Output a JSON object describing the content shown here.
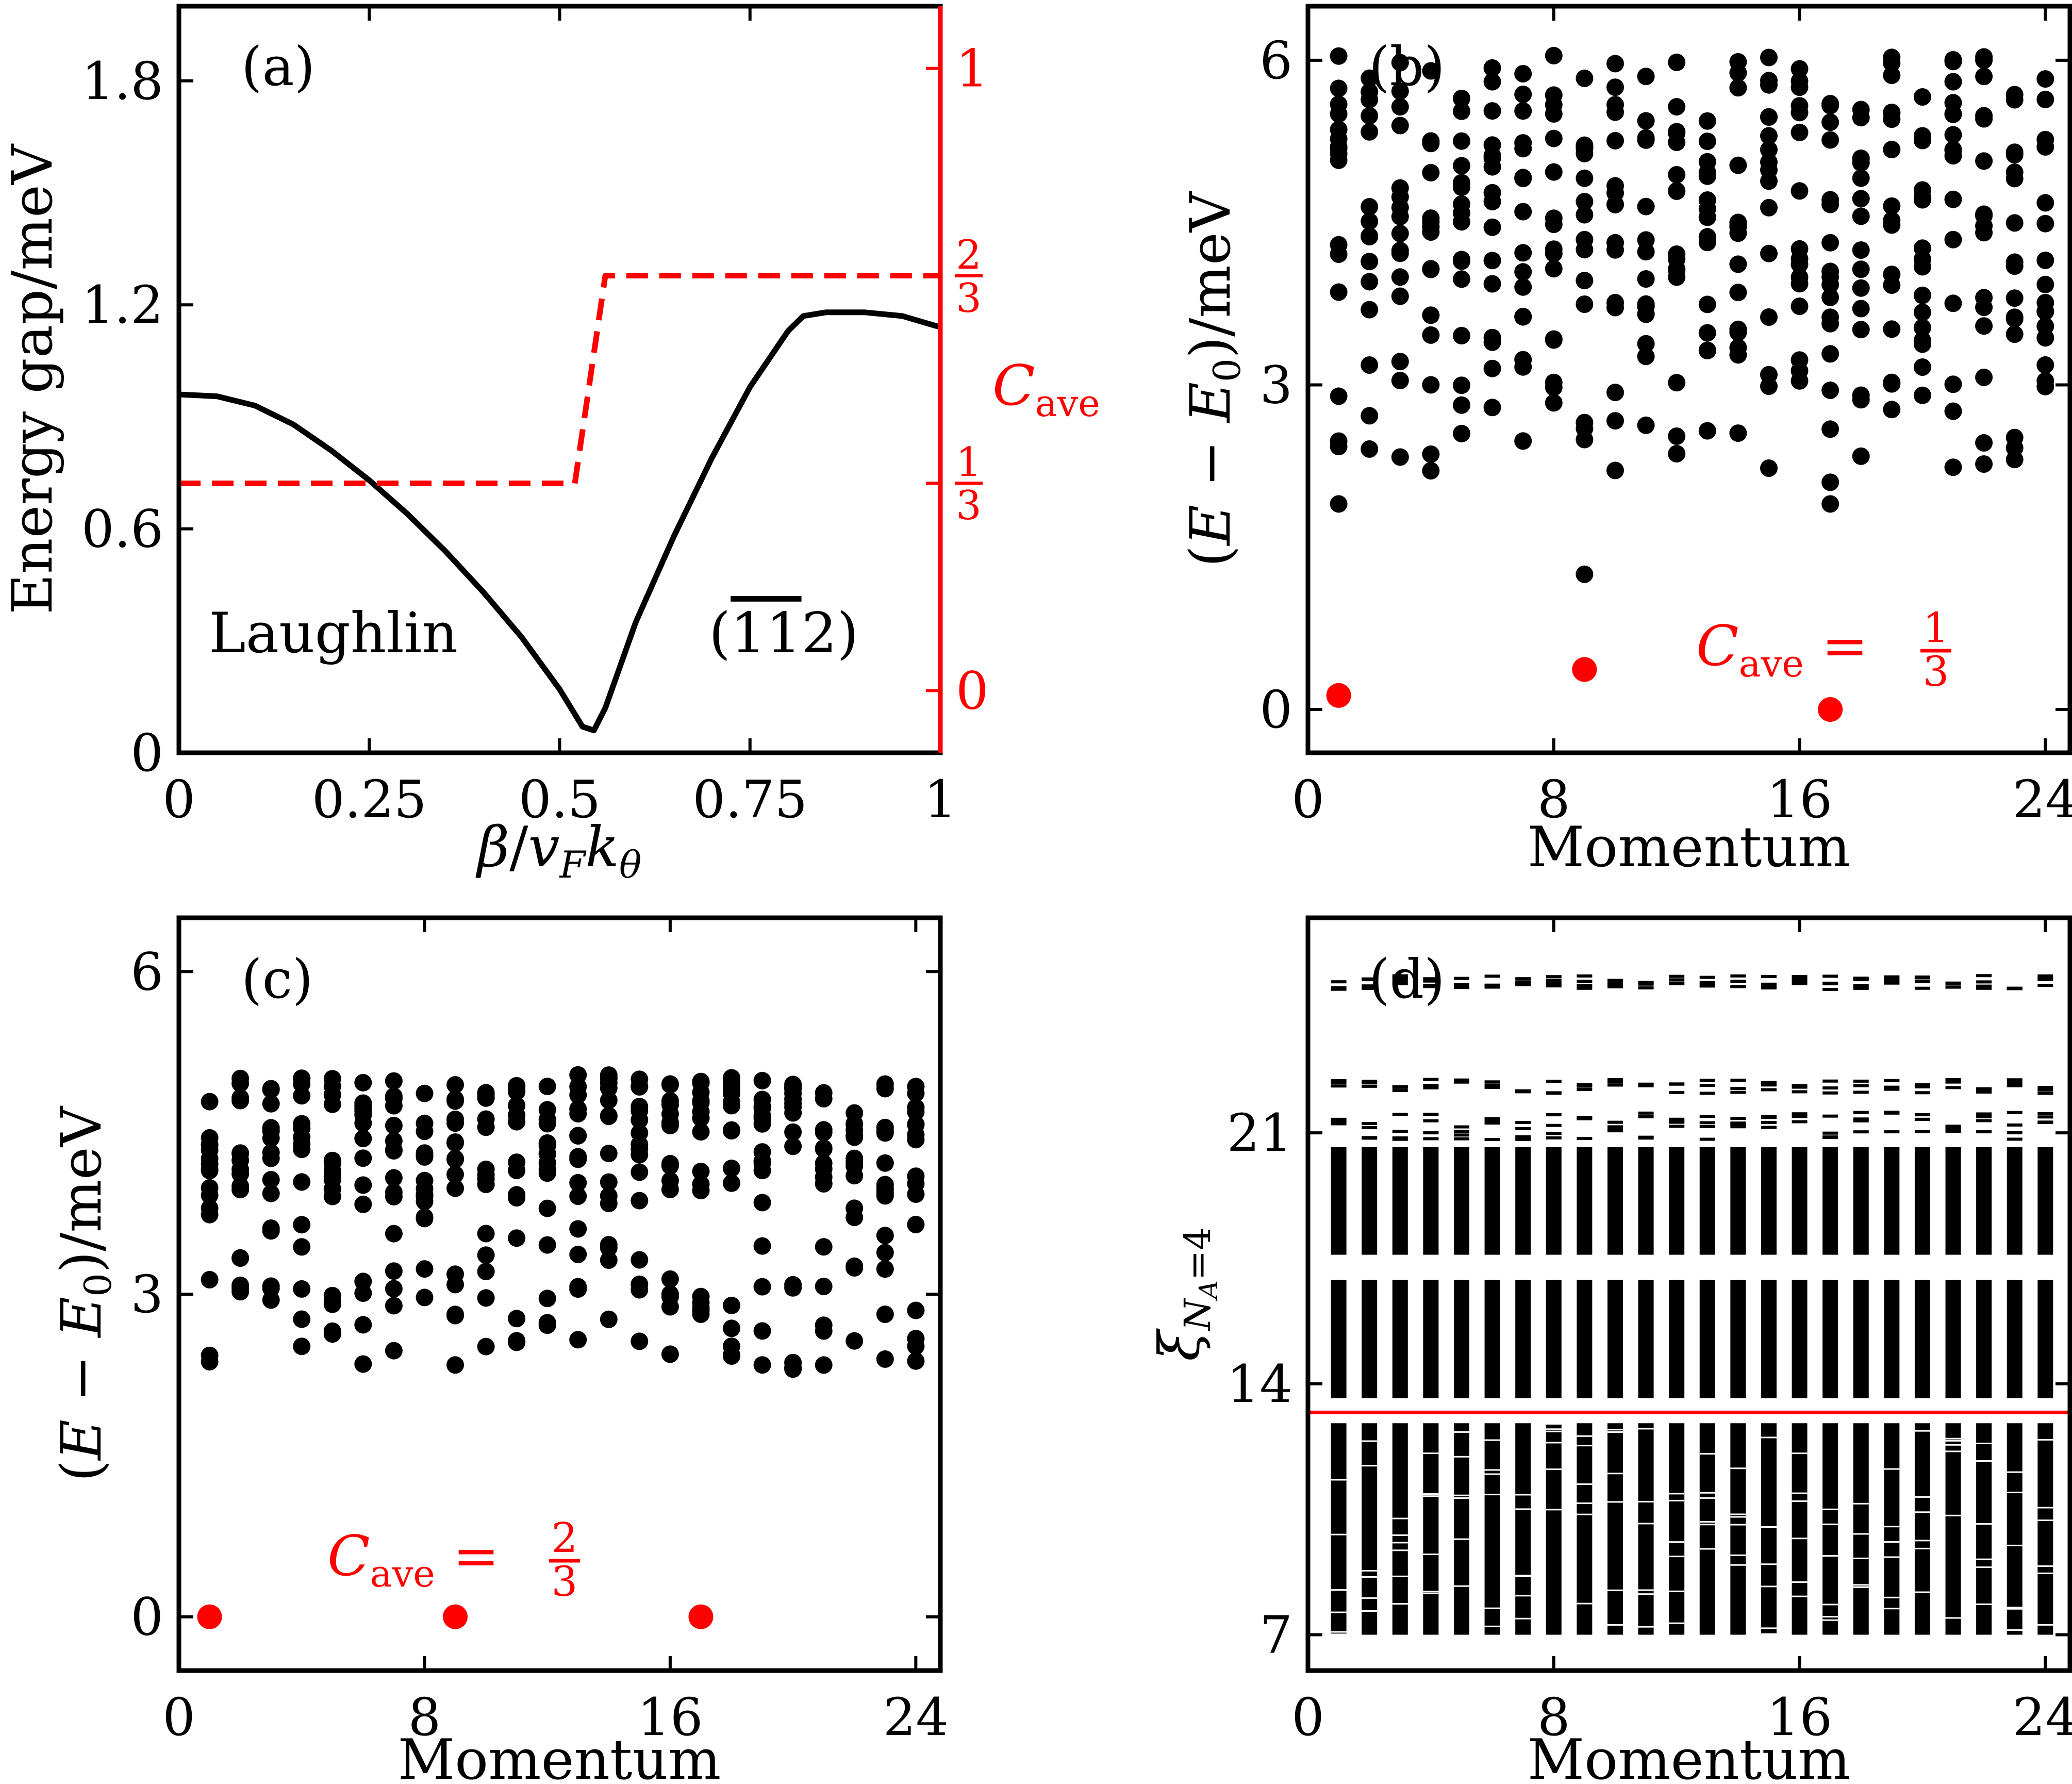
{
  "colors": {
    "ink": "#000000",
    "accent": "#ff0000",
    "background": "#ffffff"
  },
  "chart_data": [
    {
      "panel": "(a)",
      "type": "line",
      "xlabel": "β/v_F k_θ",
      "ylabel": "Energy gap/meV",
      "y2label": "C_ave",
      "xlim": [
        0,
        1
      ],
      "ylim": [
        0,
        2.0
      ],
      "y2lim": [
        -0.1,
        1.1
      ],
      "xticks": [
        "0",
        "0.25",
        "0.5",
        "0.75",
        "1"
      ],
      "yticks": [
        "0",
        "0.6",
        "1.2",
        "1.8"
      ],
      "y2ticks": [
        "0",
        "1/3",
        "2/3",
        "1"
      ],
      "annotations": [
        "Laughlin",
        "(1̄1̄2)"
      ],
      "series": [
        {
          "axis": "left",
          "style": "solid",
          "color": "#000000",
          "x": [
            0,
            0.05,
            0.1,
            0.15,
            0.2,
            0.25,
            0.3,
            0.35,
            0.4,
            0.45,
            0.5,
            0.53,
            0.545,
            0.56,
            0.6,
            0.65,
            0.7,
            0.75,
            0.8,
            0.82,
            0.85,
            0.9,
            0.95,
            1.0
          ],
          "y": [
            0.96,
            0.955,
            0.93,
            0.88,
            0.81,
            0.73,
            0.64,
            0.54,
            0.43,
            0.31,
            0.17,
            0.07,
            0.06,
            0.12,
            0.35,
            0.58,
            0.79,
            0.98,
            1.13,
            1.17,
            1.18,
            1.18,
            1.17,
            1.14
          ]
        },
        {
          "axis": "right",
          "style": "dashed",
          "color": "#ff0000",
          "x": [
            0,
            0.52,
            0.56,
            1.0
          ],
          "y": [
            0.333,
            0.333,
            0.667,
            0.667
          ]
        }
      ]
    },
    {
      "panel": "(b)",
      "type": "scatter",
      "xlabel": "Momentum",
      "ylabel": "(E − E₀)/meV",
      "xlim": [
        0,
        24.8
      ],
      "ylim": [
        -0.4,
        6.5
      ],
      "xticks": [
        "0",
        "8",
        "16",
        "24"
      ],
      "yticks": [
        "0",
        "3",
        "6"
      ],
      "annotation": "C_ave = 1/3",
      "ground_states": [
        [
          1,
          0.13
        ],
        [
          9,
          0.37
        ],
        [
          17,
          0.0
        ]
      ],
      "low_points": [
        [
          1,
          1.9
        ],
        [
          9,
          1.25
        ],
        [
          17,
          1.9
        ],
        [
          17,
          2.1
        ]
      ],
      "band_range": [
        2.2,
        6.1
      ]
    },
    {
      "panel": "(c)",
      "type": "scatter",
      "xlabel": "Momentum",
      "ylabel": "(E − E₀)/meV",
      "xlim": [
        0,
        24.8
      ],
      "ylim": [
        -0.5,
        6.5
      ],
      "xticks": [
        "0",
        "8",
        "16",
        "24"
      ],
      "yticks": [
        "0",
        "3",
        "6"
      ],
      "annotation": "C_ave = 2/3",
      "ground_states": [
        [
          1,
          0.0
        ],
        [
          9,
          0.0
        ],
        [
          17,
          0.0
        ]
      ],
      "band_range": [
        2.3,
        5.1
      ]
    },
    {
      "panel": "(d)",
      "type": "scatter",
      "xlabel": "Momentum",
      "ylabel": "ξ_{N_A=4}",
      "xlim": [
        0,
        24.8
      ],
      "ylim": [
        6,
        27
      ],
      "xticks": [
        "0",
        "8",
        "16",
        "24"
      ],
      "yticks": [
        "7",
        "14",
        "21"
      ],
      "entanglement_gap_line": 13.2,
      "lower_band": [
        7.0,
        12.9
      ],
      "upper_bands": [
        [
          13.6,
          16.9
        ],
        [
          17.6,
          20.6
        ],
        [
          20.8,
          21.6
        ],
        [
          22.1,
          22.5
        ],
        [
          25.0,
          25.4
        ]
      ]
    }
  ]
}
